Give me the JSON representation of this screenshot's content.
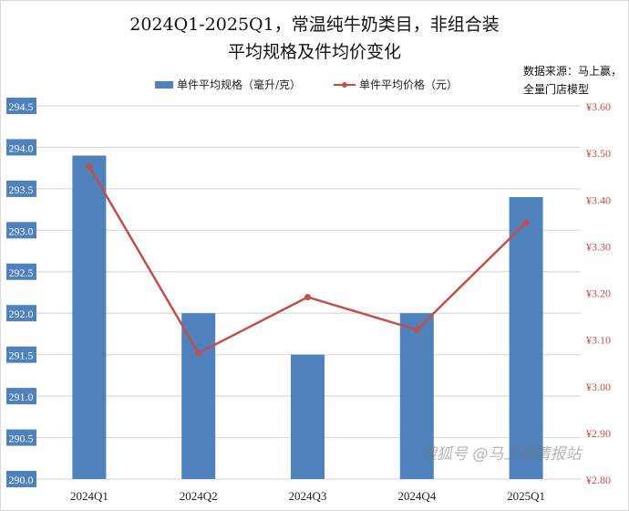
{
  "chart_data": {
    "type": "bar+line",
    "title_line1": "2024Q1-2025Q1，常温纯牛奶类目，非组合装",
    "title_line2": "平均规格及件均价变化",
    "source_line1": "数据来源：马上赢，",
    "source_line2": "全量门店模型",
    "categories": [
      "2024Q1",
      "2024Q2",
      "2024Q3",
      "2024Q4",
      "2025Q1"
    ],
    "series": [
      {
        "name": "单件平均规格（毫升/克）",
        "type": "bar",
        "axis": "left",
        "color": "#4f81bd",
        "values": [
          293.9,
          292.0,
          291.5,
          292.0,
          293.4
        ]
      },
      {
        "name": "单件平均价格（元）",
        "type": "line",
        "axis": "right",
        "color": "#c0504d",
        "values": [
          3.47,
          3.07,
          3.19,
          3.12,
          3.35
        ]
      }
    ],
    "left_axis": {
      "min": 290.0,
      "max": 294.5,
      "ticks": [
        "290.0",
        "290.5",
        "291.0",
        "291.5",
        "292.0",
        "292.5",
        "293.0",
        "293.5",
        "294.0",
        "294.5"
      ]
    },
    "right_axis": {
      "min": 2.8,
      "max": 3.6,
      "ticks": [
        "¥2.80",
        "¥2.90",
        "¥3.00",
        "¥3.10",
        "¥3.20",
        "¥3.30",
        "¥3.40",
        "¥3.50",
        "¥3.60"
      ]
    },
    "grid": true,
    "legend_position": "top"
  },
  "watermark": "搜狐号 @马上赢情报站"
}
